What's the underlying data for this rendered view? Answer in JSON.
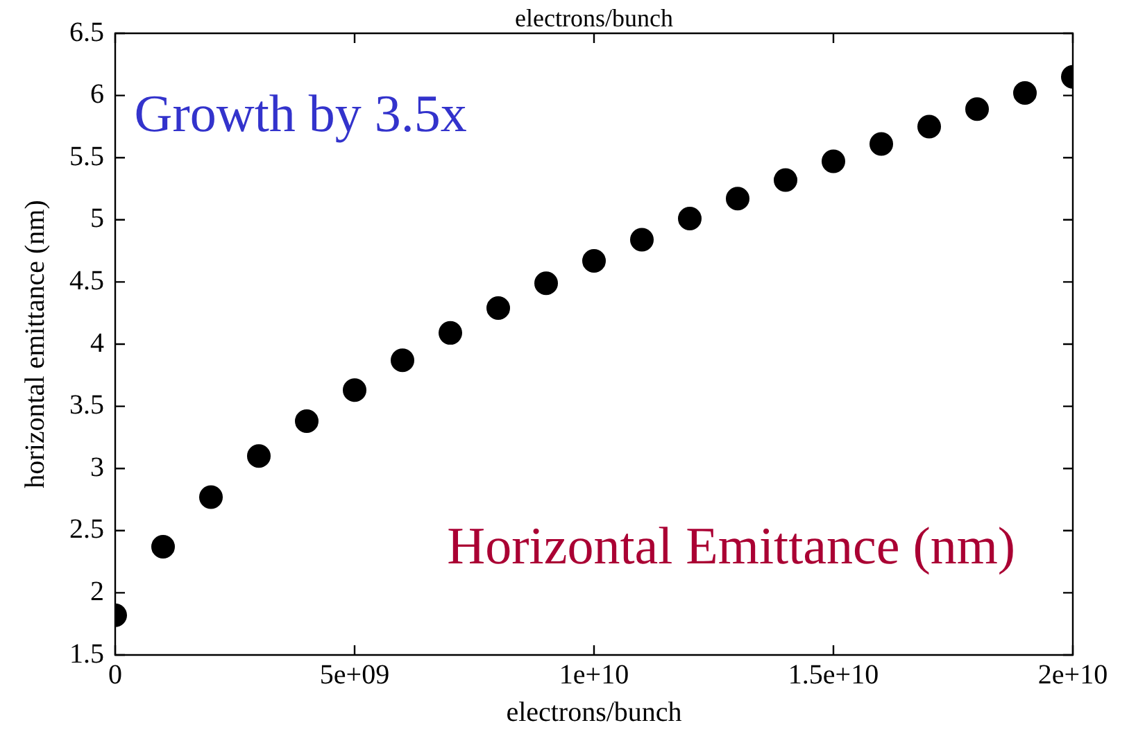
{
  "chart_data": {
    "type": "scatter",
    "xlabel": "electrons/bunch",
    "ylabel": "horizontal emittance (nm)",
    "annotations": [
      "electrons/bunch",
      "Growth by 3.5x",
      "Horizontal Emittance (nm)"
    ],
    "x": [
      0,
      1000000000.0,
      2000000000.0,
      3000000000.0,
      4000000000.0,
      5000000000.0,
      6000000000.0,
      7000000000.0,
      8000000000.0,
      9000000000.0,
      10000000000.0,
      11000000000.0,
      12000000000.0,
      13000000000.0,
      14000000000.0,
      15000000000.0,
      16000000000.0,
      17000000000.0,
      18000000000.0,
      19000000000.0,
      20000000000.0
    ],
    "series": [
      {
        "color": "#000000",
        "values": [
          1.82,
          2.37,
          2.77,
          3.1,
          3.38,
          3.63,
          3.87,
          4.09,
          4.29,
          4.49,
          4.67,
          4.84,
          5.01,
          5.17,
          5.32,
          5.47,
          5.61,
          5.75,
          5.89,
          6.02,
          6.15
        ]
      }
    ],
    "xlim": [
      0,
      20000000000.0
    ],
    "xticks": [
      0,
      {
        "value": 5000000000.0,
        "label": "5e+09"
      },
      {
        "value": 10000000000.0,
        "label": "1e+10"
      },
      {
        "value": 15000000000.0,
        "label": "1.5e+10"
      },
      {
        "value": 20000000000.0,
        "label": "2e+10"
      }
    ],
    "ylim": [
      1.5,
      6.5
    ],
    "yticks": [
      1.5,
      2,
      2.5,
      3,
      3.5,
      4,
      4.5,
      5,
      5.5,
      6,
      6.5
    ],
    "grid": false,
    "legend": false,
    "marker": "circle"
  }
}
